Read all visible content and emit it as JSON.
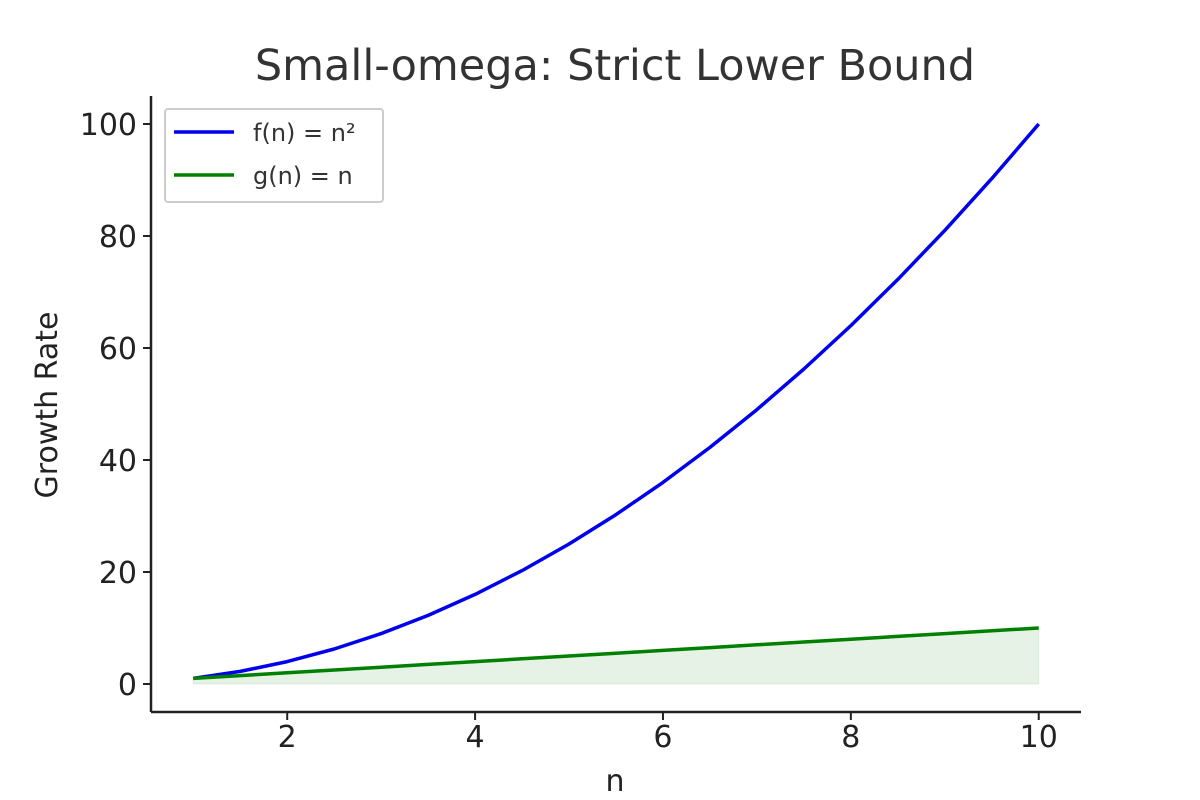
{
  "chart_data": {
    "type": "line",
    "title": "Small-omega: Strict Lower Bound",
    "xlabel": "n",
    "ylabel": "Growth Rate",
    "xlim": [
      0.55,
      10.45
    ],
    "ylim": [
      -5,
      105
    ],
    "x_ticks": [
      "2",
      "4",
      "6",
      "8",
      "10"
    ],
    "y_ticks": [
      "0",
      "20",
      "40",
      "60",
      "80",
      "100"
    ],
    "x_tick_values": [
      2,
      4,
      6,
      8,
      10
    ],
    "y_tick_values": [
      0,
      20,
      40,
      60,
      80,
      100
    ],
    "x": [
      1,
      1.5,
      2,
      2.5,
      3,
      3.5,
      4,
      4.5,
      5,
      5.5,
      6,
      6.5,
      7,
      7.5,
      8,
      8.5,
      9,
      9.5,
      10
    ],
    "series": [
      {
        "name": "f(n) = n²",
        "color": "#0000ee",
        "values": [
          1,
          2.25,
          4,
          6.25,
          9,
          12.25,
          16,
          20.25,
          25,
          30.25,
          36,
          42.25,
          49,
          56.25,
          64,
          72.25,
          81,
          90.25,
          100
        ]
      },
      {
        "name": "g(n) = n",
        "color": "#008000",
        "values": [
          1,
          1.5,
          2,
          2.5,
          3,
          3.5,
          4,
          4.5,
          5,
          5.5,
          6,
          6.5,
          7,
          7.5,
          8,
          8.5,
          9,
          9.5,
          10
        ]
      }
    ],
    "fill_under_series": "g(n) = n",
    "fill_color": "#008000",
    "grid": false,
    "legend_position": "top-left"
  }
}
